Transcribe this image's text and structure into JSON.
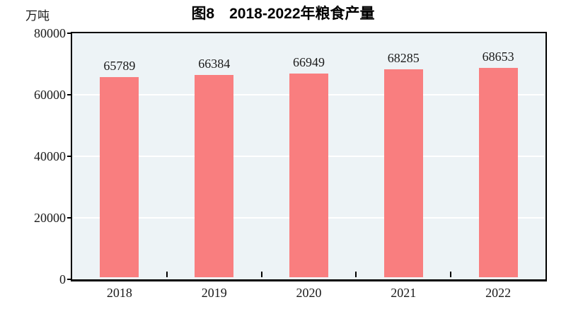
{
  "chart_data": {
    "type": "bar",
    "title": "图8　2018-2022年粮食产量",
    "unit_label": "万吨",
    "categories": [
      "2018",
      "2019",
      "2020",
      "2021",
      "2022"
    ],
    "values": [
      65789,
      66384,
      66949,
      68285,
      68653
    ],
    "series_name": "粮食产量",
    "ylim": [
      0,
      80000
    ],
    "y_ticks": [
      0,
      20000,
      40000,
      60000,
      80000
    ],
    "grid": "horizontal",
    "gridline_values": [
      20000,
      40000,
      60000
    ],
    "legend": "none",
    "data_labels": "above bars",
    "colors": {
      "bar": "#f97e7f",
      "plot_bg": "#edf3f6",
      "gridline": "#ffffff",
      "axis": "#000000",
      "text": "#1a1a1a"
    }
  }
}
